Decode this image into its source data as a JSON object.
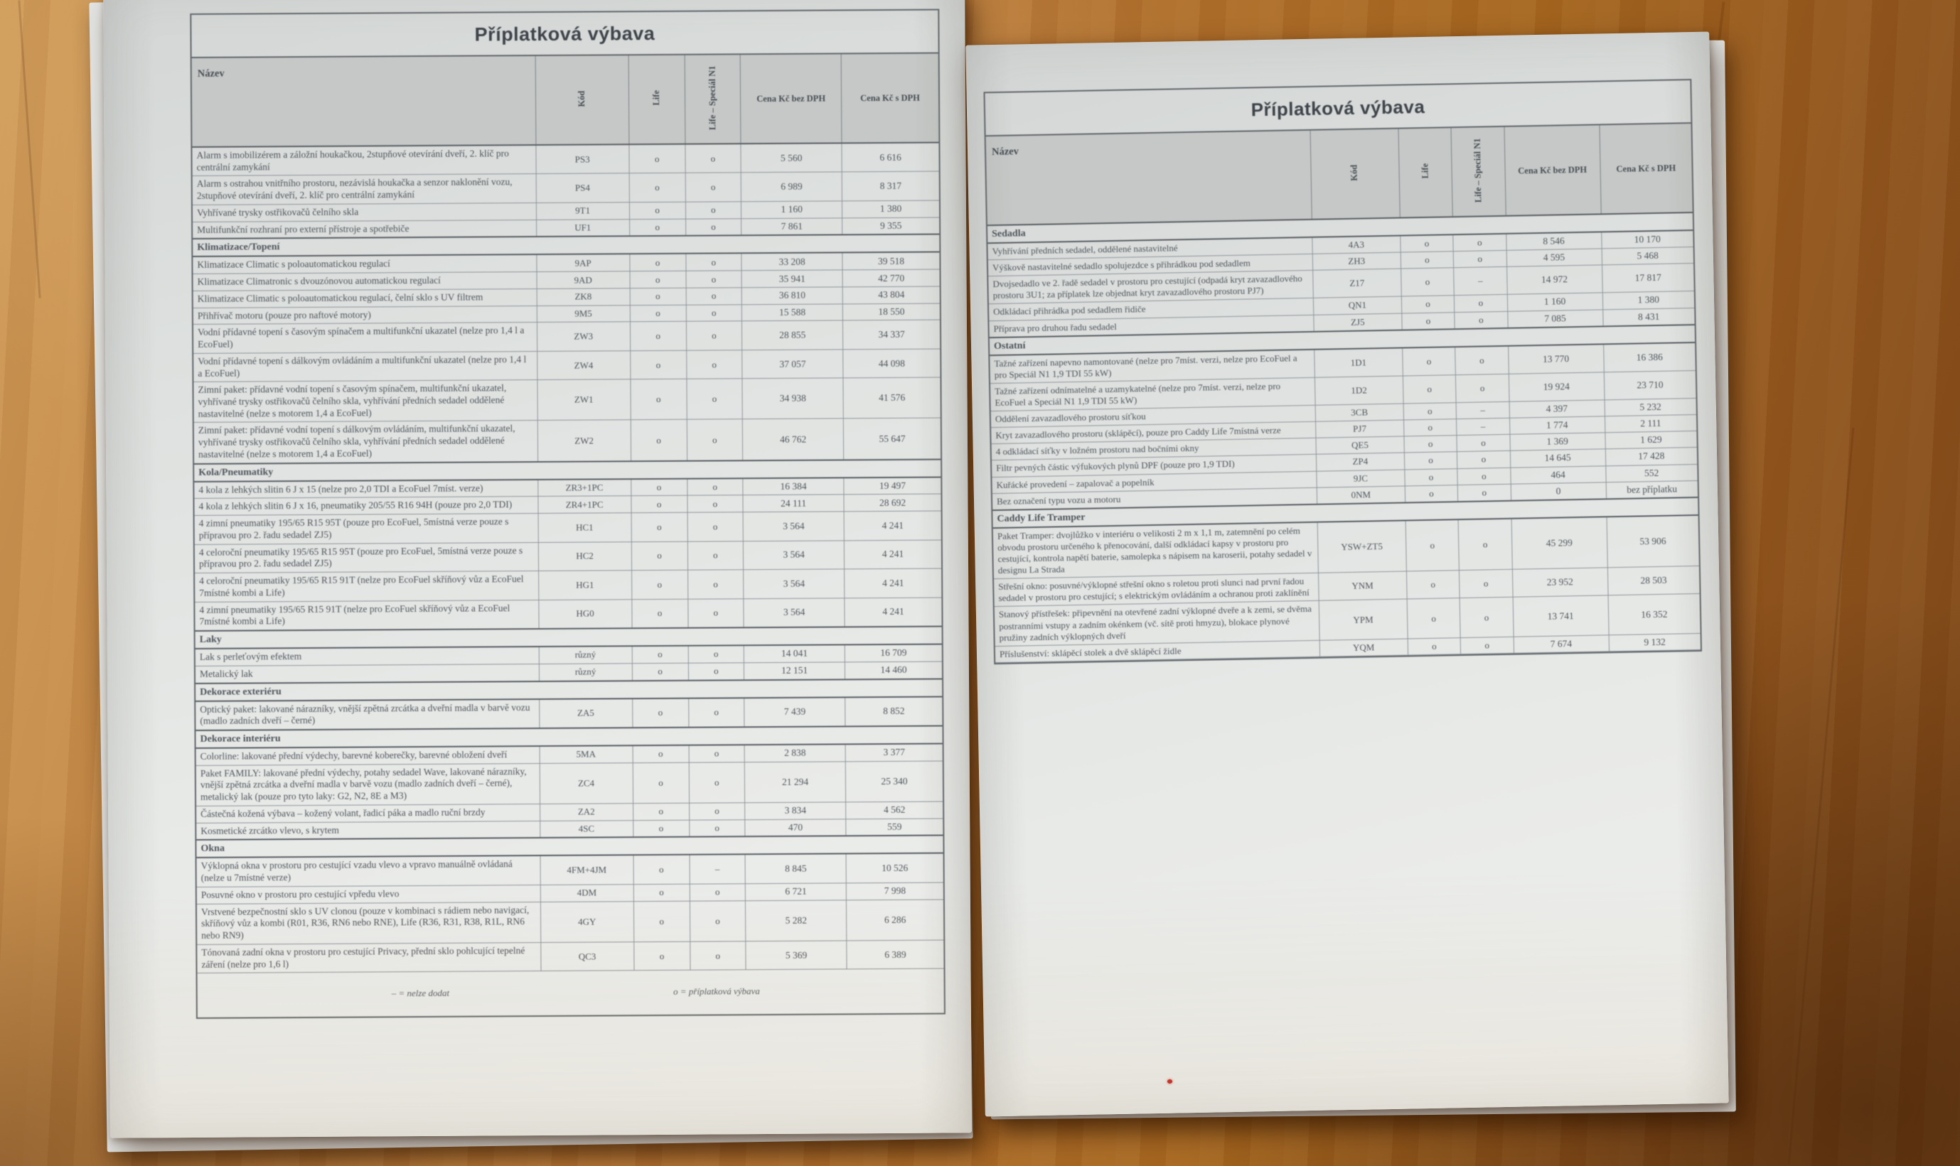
{
  "scene": {
    "description": "Open printed price-list brochure lying on a wooden desk",
    "desk_color": "#b47331",
    "paper_color": "#e7e9e7",
    "red_speck_color": "#c3372b"
  },
  "legend": {
    "dash": "– = nelze dodat",
    "circle": "o = příplatková výbava"
  },
  "columns": {
    "name": "Název",
    "code": "Kód",
    "life": "Life",
    "special": "Life – Speciál N1",
    "price_ex": "Cena Kč bez DPH",
    "price_inc": "Cena Kč s DPH"
  },
  "pages": [
    {
      "title": "Příplatková výbava",
      "rows": [
        {
          "t": "item",
          "name": "Alarm s imobilizérem a záložní houkačkou, 2stupňové otevírání dveří, 2. klíč pro centrální zamykání",
          "code": "PS3",
          "life": "o",
          "special": "o",
          "ex": "5 560",
          "inc": "6 616"
        },
        {
          "t": "item",
          "name": "Alarm s ostrahou vnitřního prostoru, nezávislá houkačka a senzor naklonění vozu, 2stupňové otevírání dveří, 2. klíč pro centrální zamykání",
          "code": "PS4",
          "life": "o",
          "special": "o",
          "ex": "6 989",
          "inc": "8 317"
        },
        {
          "t": "item",
          "name": "Vyhřívané trysky ostřikovačů čelního skla",
          "code": "9T1",
          "life": "o",
          "special": "o",
          "ex": "1 160",
          "inc": "1 380"
        },
        {
          "t": "item",
          "name": "Multifunkční rozhraní pro externí přístroje a spotřebiče",
          "code": "UF1",
          "life": "o",
          "special": "o",
          "ex": "7 861",
          "inc": "9 355"
        },
        {
          "t": "section",
          "name": "Klimatizace/Topení"
        },
        {
          "t": "item",
          "name": "Klimatizace Climatic s poloautomatickou regulací",
          "code": "9AP",
          "life": "o",
          "special": "o",
          "ex": "33 208",
          "inc": "39 518"
        },
        {
          "t": "item",
          "name": "Klimatizace Climatronic s dvouzónovou automatickou regulací",
          "code": "9AD",
          "life": "o",
          "special": "o",
          "ex": "35 941",
          "inc": "42 770"
        },
        {
          "t": "item",
          "name": "Klimatizace Climatic s poloautomatickou regulací, čelní sklo s UV filtrem",
          "code": "ZK8",
          "life": "o",
          "special": "o",
          "ex": "36 810",
          "inc": "43 804"
        },
        {
          "t": "item",
          "name": "Přihřívač motoru (pouze pro naftové motory)",
          "code": "9M5",
          "life": "o",
          "special": "o",
          "ex": "15 588",
          "inc": "18 550"
        },
        {
          "t": "item",
          "name": "Vodní přídavné topení s časovým spínačem a multifunkční ukazatel (nelze pro 1,4 l a EcoFuel)",
          "code": "ZW3",
          "life": "o",
          "special": "o",
          "ex": "28 855",
          "inc": "34 337"
        },
        {
          "t": "item",
          "name": "Vodní přídavné topení s dálkovým ovládáním a multifunkční ukazatel (nelze pro 1,4 l a EcoFuel)",
          "code": "ZW4",
          "life": "o",
          "special": "o",
          "ex": "37 057",
          "inc": "44 098"
        },
        {
          "t": "item",
          "name": "Zimní paket: přídavné vodní topení s časovým spínačem, multifunkční ukazatel, vyhřívané trysky ostřikovačů čelního skla, vyhřívání předních sedadel oddělené nastavitelné (nelze s motorem 1,4 a EcoFuel)",
          "code": "ZW1",
          "life": "o",
          "special": "o",
          "ex": "34 938",
          "inc": "41 576"
        },
        {
          "t": "item",
          "name": "Zimní paket: přídavné vodní topení s dálkovým ovládáním, multifunkční ukazatel, vyhřívané trysky ostřikovačů čelního skla, vyhřívání předních sedadel oddělené nastavitelné (nelze s motorem 1,4 a EcoFuel)",
          "code": "ZW2",
          "life": "o",
          "special": "o",
          "ex": "46 762",
          "inc": "55 647"
        },
        {
          "t": "section",
          "name": "Kola/Pneumatiky"
        },
        {
          "t": "item",
          "name": "4 kola z lehkých slitin 6 J x 15 (nelze pro 2,0 TDI a EcoFuel 7míst. verze)",
          "code": "ZR3+1PC",
          "life": "o",
          "special": "o",
          "ex": "16 384",
          "inc": "19 497"
        },
        {
          "t": "item",
          "name": "4 kola z lehkých slitin 6 J x 16, pneumatiky 205/55 R16 94H (pouze pro 2,0 TDI)",
          "code": "ZR4+1PC",
          "life": "o",
          "special": "o",
          "ex": "24 111",
          "inc": "28 692"
        },
        {
          "t": "item",
          "name": "4 zimní pneumatiky 195/65 R15 95T (pouze pro EcoFuel, 5místná verze pouze s přípravou pro 2. řadu sedadel ZJ5)",
          "code": "HC1",
          "life": "o",
          "special": "o",
          "ex": "3 564",
          "inc": "4 241"
        },
        {
          "t": "item",
          "name": "4 celoroční pneumatiky 195/65 R15 95T (pouze pro EcoFuel, 5místná verze pouze s přípravou pro 2. řadu sedadel ZJ5)",
          "code": "HC2",
          "life": "o",
          "special": "o",
          "ex": "3 564",
          "inc": "4 241"
        },
        {
          "t": "item",
          "name": "4 celoroční pneumatiky 195/65 R15 91T (nelze pro EcoFuel skříňový vůz a EcoFuel 7místné kombi a Life)",
          "code": "HG1",
          "life": "o",
          "special": "o",
          "ex": "3 564",
          "inc": "4 241"
        },
        {
          "t": "item",
          "name": "4 zimní pneumatiky 195/65 R15 91T (nelze pro EcoFuel skříňový vůz a EcoFuel 7místné kombi a Life)",
          "code": "HG0",
          "life": "o",
          "special": "o",
          "ex": "3 564",
          "inc": "4 241"
        },
        {
          "t": "section",
          "name": "Laky"
        },
        {
          "t": "item",
          "name": "Lak s perleťovým efektem",
          "code": "různý",
          "life": "o",
          "special": "o",
          "ex": "14 041",
          "inc": "16 709"
        },
        {
          "t": "item",
          "name": "Metalický lak",
          "code": "různý",
          "life": "o",
          "special": "o",
          "ex": "12 151",
          "inc": "14 460"
        },
        {
          "t": "section",
          "name": "Dekorace exteriéru"
        },
        {
          "t": "item",
          "name": "Optický paket: lakované nárazníky, vnější zpětná zrcátka a dveřní madla v barvě vozu (madlo zadních dveří – černé)",
          "code": "ZA5",
          "life": "o",
          "special": "o",
          "ex": "7 439",
          "inc": "8 852"
        },
        {
          "t": "section",
          "name": "Dekorace interiéru"
        },
        {
          "t": "item",
          "name": "Colorline: lakované přední výdechy, barevné koberečky, barevné obložení dveří",
          "code": "5MA",
          "life": "o",
          "special": "o",
          "ex": "2 838",
          "inc": "3 377"
        },
        {
          "t": "item",
          "name": "Paket FAMILY: lakované přední výdechy, potahy sedadel Wave, lakované nárazníky, vnější zpětná zrcátka a dveřní madla v barvě vozu (madlo zadních dveří – černé), metalický lak (pouze pro tyto laky: G2, N2, 8E a M3)",
          "code": "ZC4",
          "life": "o",
          "special": "o",
          "ex": "21 294",
          "inc": "25 340"
        },
        {
          "t": "item",
          "name": "Částečná kožená výbava – kožený volant, řadicí páka a madlo ruční brzdy",
          "code": "ZA2",
          "life": "o",
          "special": "o",
          "ex": "3 834",
          "inc": "4 562"
        },
        {
          "t": "item",
          "name": "Kosmetické zrcátko vlevo, s krytem",
          "code": "4SC",
          "life": "o",
          "special": "o",
          "ex": "470",
          "inc": "559"
        },
        {
          "t": "section",
          "name": "Okna"
        },
        {
          "t": "item",
          "name": "Výklopná okna v prostoru pro cestující vzadu vlevo a vpravo manuálně ovládaná (nelze u 7místné verze)",
          "code": "4FM+4JM",
          "life": "o",
          "special": "–",
          "ex": "8 845",
          "inc": "10 526"
        },
        {
          "t": "item",
          "name": "Posuvné okno v prostoru pro cestující vpředu vlevo",
          "code": "4DM",
          "life": "o",
          "special": "o",
          "ex": "6 721",
          "inc": "7 998"
        },
        {
          "t": "item",
          "name": "Vrstvené bezpečnostní sklo s UV clonou (pouze v kombinaci s rádiem nebo navigací, skříňový vůz a kombi (R01, R36, RN6 nebo RNE), Life (R36, R31, R38, R1L, RN6 nebo RN9)",
          "code": "4GY",
          "life": "o",
          "special": "o",
          "ex": "5 282",
          "inc": "6 286"
        },
        {
          "t": "item",
          "name": "Tónovaná zadní okna v prostoru pro cestující Privacy, přední sklo pohlcující tepelné záření (nelze pro 1,6 l)",
          "code": "QC3",
          "life": "o",
          "special": "o",
          "ex": "5 369",
          "inc": "6 389"
        }
      ],
      "has_legend": true
    },
    {
      "title": "Příplatková výbava",
      "rows": [
        {
          "t": "section",
          "name": "Sedadla"
        },
        {
          "t": "item",
          "name": "Vyhřívání předních sedadel, oddělené nastavitelné",
          "code": "4A3",
          "life": "o",
          "special": "o",
          "ex": "8 546",
          "inc": "10 170"
        },
        {
          "t": "item",
          "name": "Výškově nastavitelné sedadlo spolujezdce s přihrádkou pod sedadlem",
          "code": "ZH3",
          "life": "o",
          "special": "o",
          "ex": "4 595",
          "inc": "5 468"
        },
        {
          "t": "item",
          "name": "Dvojsedadlo ve 2. řadě sedadel v prostoru pro cestující (odpadá kryt zavazadlového prostoru 3U1; za příplatek lze objednat kryt zavazadlového prostoru PJ7)",
          "code": "Z17",
          "life": "o",
          "special": "–",
          "ex": "14 972",
          "inc": "17 817"
        },
        {
          "t": "item",
          "name": "Odkládací přihrádka pod sedadlem řidiče",
          "code": "QN1",
          "life": "o",
          "special": "o",
          "ex": "1 160",
          "inc": "1 380"
        },
        {
          "t": "item",
          "name": "Příprava pro druhou řadu sedadel",
          "code": "ZJ5",
          "life": "o",
          "special": "o",
          "ex": "7 085",
          "inc": "8 431"
        },
        {
          "t": "section",
          "name": "Ostatní"
        },
        {
          "t": "item",
          "name": "Tažné zařízení napevno namontované (nelze pro 7míst. verzi, nelze pro EcoFuel a pro Speciál N1 1,9 TDI 55 kW)",
          "code": "1D1",
          "life": "o",
          "special": "o",
          "ex": "13 770",
          "inc": "16 386"
        },
        {
          "t": "item",
          "name": "Tažné zařízení odnímatelné a uzamykatelné (nelze pro 7míst. verzi, nelze pro EcoFuel a Speciál N1 1,9 TDI 55 kW)",
          "code": "1D2",
          "life": "o",
          "special": "o",
          "ex": "19 924",
          "inc": "23 710"
        },
        {
          "t": "item",
          "name": "Oddělení zavazadlového prostoru síťkou",
          "code": "3CB",
          "life": "o",
          "special": "–",
          "ex": "4 397",
          "inc": "5 232"
        },
        {
          "t": "item",
          "name": "Kryt zavazadlového prostoru (sklápěcí), pouze pro Caddy Life 7místná verze",
          "code": "PJ7",
          "life": "o",
          "special": "–",
          "ex": "1 774",
          "inc": "2 111"
        },
        {
          "t": "item",
          "name": "4 odkládací síťky v ložném prostoru nad bočními okny",
          "code": "QE5",
          "life": "o",
          "special": "o",
          "ex": "1 369",
          "inc": "1 629"
        },
        {
          "t": "item",
          "name": "Filtr pevných částic výfukových plynů DPF (pouze pro 1,9 TDI)",
          "code": "ZP4",
          "life": "o",
          "special": "o",
          "ex": "14 645",
          "inc": "17 428"
        },
        {
          "t": "item",
          "name": "Kuřácké provedení – zapalovač a popelník",
          "code": "9JC",
          "life": "o",
          "special": "o",
          "ex": "464",
          "inc": "552"
        },
        {
          "t": "item",
          "name": "Bez označení typu vozu a motoru",
          "code": "0NM",
          "life": "o",
          "special": "o",
          "ex": "0",
          "inc": "bez příplatku"
        },
        {
          "t": "section",
          "name": "Caddy Life Tramper"
        },
        {
          "t": "item",
          "name": "Paket Tramper: dvojlůžko v interiéru o velikosti 2 m x 1,1 m, zatemnění po celém obvodu prostoru určeného k přenocování, další odkládací kapsy v prostoru pro cestující, kontrola napětí baterie, samolepka s nápisem na karoserii, potahy sedadel v designu La Strada",
          "code": "YSW+ZT5",
          "life": "o",
          "special": "o",
          "ex": "45 299",
          "inc": "53 906"
        },
        {
          "t": "item",
          "name": "Střešní okno: posuvné/výklopné střešní okno s roletou proti slunci nad první řadou sedadel v prostoru pro cestující; s elektrickým ovládáním a ochranou proti zaklínění",
          "code": "YNM",
          "life": "o",
          "special": "o",
          "ex": "23 952",
          "inc": "28 503"
        },
        {
          "t": "item",
          "name": "Stanový přístřešek: připevnění na otevřené zadní výklopné dveře a k zemi, se dvěma postranními vstupy a zadním okénkem (vč. sítě proti hmyzu), blokace plynové pružiny zadních výklopných dveří",
          "code": "YPM",
          "life": "o",
          "special": "o",
          "ex": "13 741",
          "inc": "16 352"
        },
        {
          "t": "item",
          "name": "Příslušenství: sklápěcí stolek a dvě sklápěcí židle",
          "code": "YQM",
          "life": "o",
          "special": "o",
          "ex": "7 674",
          "inc": "9 132"
        }
      ],
      "has_legend": false
    }
  ]
}
